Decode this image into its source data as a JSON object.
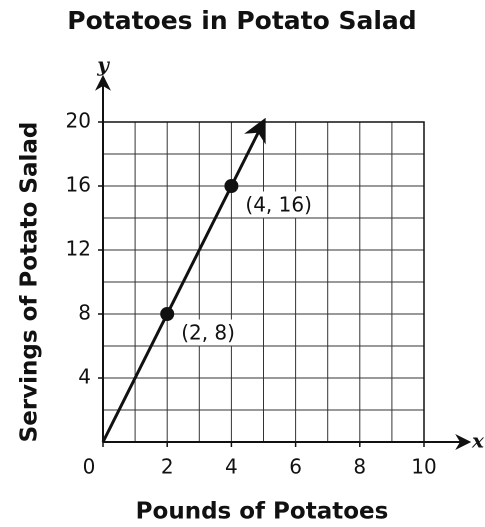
{
  "chart_data": {
    "type": "line",
    "title": "Potatoes in Potato Salad",
    "x_label": "Pounds of Potatoes",
    "y_label": "Servings of Potato Salad",
    "x_axis_name": "x",
    "y_axis_name": "y",
    "series": [
      {
        "x": [
          0,
          5
        ],
        "values": [
          0,
          20
        ],
        "color": "#111111",
        "arrow": true
      },
      {
        "x": [
          2,
          4
        ],
        "values": [
          8,
          16
        ],
        "color": "#111111",
        "markers": true,
        "line": false,
        "value_labels": [
          "(2, 8)",
          "(4, 16)"
        ]
      }
    ],
    "xlim": [
      0,
      10
    ],
    "ylim": [
      0,
      20
    ],
    "xticks": [
      0,
      2,
      4,
      6,
      8,
      10
    ],
    "yticks": [
      4,
      8,
      12,
      16,
      20
    ],
    "grid": {
      "x_step": 1,
      "y_step": 2
    }
  }
}
